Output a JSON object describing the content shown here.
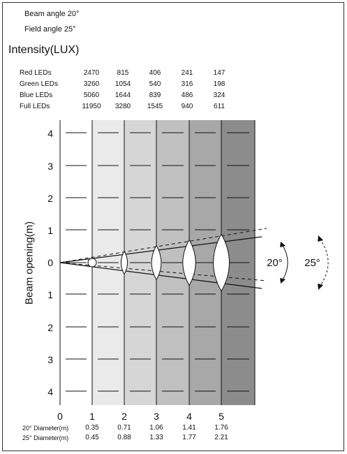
{
  "header": {
    "beam_angle": "Beam angle  20°",
    "field_angle": "Field angle  25°",
    "title": "Intensity(LUX)"
  },
  "table": {
    "rows": [
      {
        "label": "Red LEDs",
        "values": [
          "2470",
          "815",
          "406",
          "241",
          "147"
        ]
      },
      {
        "label": "Green LEDs",
        "values": [
          "3260",
          "1054",
          "540",
          "316",
          "198"
        ]
      },
      {
        "label": "Blue LEDs",
        "values": [
          "5060",
          "1644",
          "839",
          "486",
          "324"
        ]
      },
      {
        "label": "Full LEDs",
        "values": [
          "11950",
          "3280",
          "1545",
          "940",
          "611"
        ]
      }
    ]
  },
  "diagram": {
    "y_axis_label": "Beam opening(m)",
    "y_ticks_upper": [
      "4",
      "3",
      "2",
      "1"
    ],
    "y_tick_zero": "0",
    "y_ticks_lower": [
      "1",
      "2",
      "3",
      "4"
    ],
    "x_ticks": [
      "0",
      "1",
      "2",
      "3",
      "4",
      "5"
    ],
    "beam_angle_label": "20°",
    "field_angle_label": "25°",
    "band_colors": [
      "#eaeaea",
      "#d6d6d6",
      "#c0c0c0",
      "#a8a8a8",
      "#8c8c8c"
    ]
  },
  "diameters": {
    "rows": [
      {
        "label": "20° Diameter(m)",
        "values": [
          "0.35",
          "0.71",
          "1.06",
          "1.41",
          "1.76"
        ]
      },
      {
        "label": "25°  Diameter(m)",
        "values": [
          "0.45",
          "0.88",
          "1.33",
          "1.77",
          "2.21"
        ]
      }
    ]
  }
}
